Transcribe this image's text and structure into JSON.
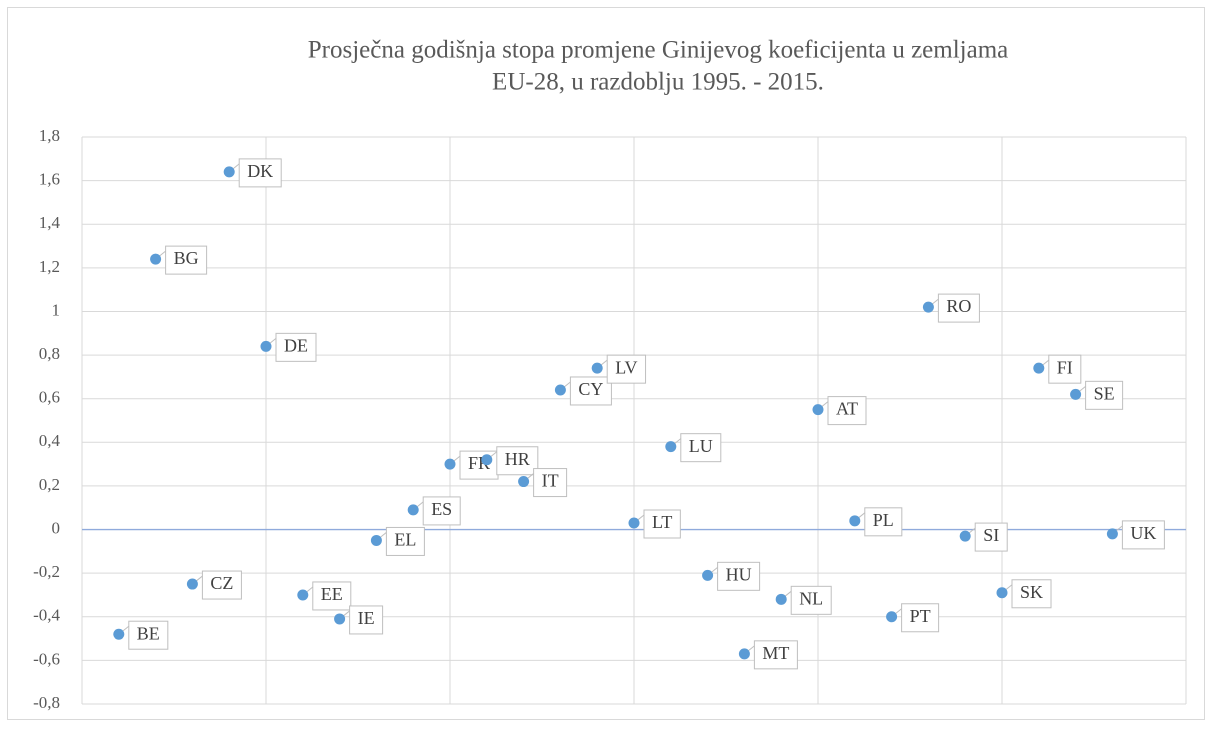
{
  "chart_data": {
    "type": "scatter",
    "title": [
      "Prosječna godišnja stopa promjene Ginijevog koeficijenta u zemljama",
      "EU-28, u razdoblju 1995. - 2015."
    ],
    "x": [
      1,
      2,
      3,
      4,
      5,
      6,
      7,
      8,
      9,
      10,
      11,
      12,
      13,
      14,
      15,
      16,
      17,
      18,
      19,
      20,
      21,
      22,
      23,
      24,
      25,
      26,
      27,
      28
    ],
    "values": [
      -0.48,
      1.24,
      -0.25,
      1.64,
      0.84,
      -0.3,
      -0.41,
      -0.05,
      0.09,
      0.3,
      0.32,
      0.22,
      0.64,
      0.74,
      0.03,
      0.38,
      -0.21,
      -0.57,
      -0.32,
      0.55,
      0.04,
      -0.4,
      1.02,
      -0.03,
      -0.29,
      0.74,
      0.62,
      -0.02
    ],
    "labels": [
      "BE",
      "BG",
      "CZ",
      "DK",
      "DE",
      "EE",
      "IE",
      "EL",
      "ES",
      "FR",
      "HR",
      "IT",
      "CY",
      "LV",
      "LT",
      "LU",
      "HU",
      "MT",
      "NL",
      "AT",
      "PL",
      "PT",
      "RO",
      "SI",
      "SK",
      "FI",
      "SE",
      "UK"
    ],
    "color": "#5b9bd5",
    "xlim": [
      0,
      30
    ],
    "xticks": [
      0,
      5,
      10,
      15,
      20,
      25,
      30
    ],
    "ylim": [
      -0.8,
      1.8
    ],
    "yticks": [
      {
        "value": -0.8,
        "label": "-0,8"
      },
      {
        "value": -0.6,
        "label": "-0,6"
      },
      {
        "value": -0.4,
        "label": "-0,4"
      },
      {
        "value": -0.2,
        "label": "-0,2"
      },
      0,
      {
        "value": 0.2,
        "label": "0,2"
      },
      {
        "value": 0.4,
        "label": "0,4"
      },
      {
        "value": 0.6,
        "label": "0,6"
      },
      {
        "value": 0.8,
        "label": "0,8"
      },
      1,
      {
        "value": 1.2,
        "label": "1,2"
      },
      {
        "value": 1.4,
        "label": "1,4"
      },
      {
        "value": 1.6,
        "label": "1,6"
      },
      {
        "value": 1.8,
        "label": "1,8"
      }
    ],
    "grid": true
  }
}
